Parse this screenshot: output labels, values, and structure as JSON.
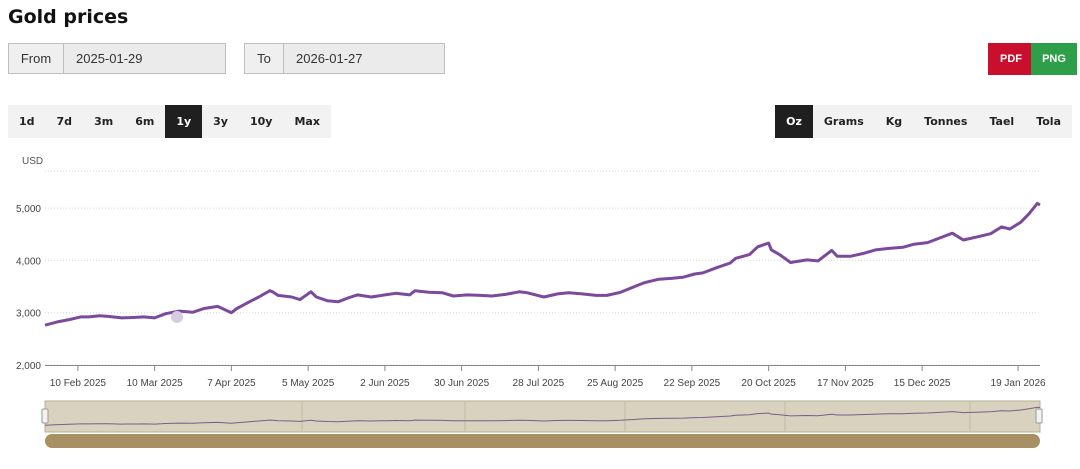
{
  "page": {
    "title": "Gold prices"
  },
  "range": {
    "from_label": "From",
    "from_value": "2025-01-29",
    "to_label": "To",
    "to_value": "2026-01-27"
  },
  "export": {
    "pdf": "PDF",
    "png": "PNG",
    "pdf_color": "#c8102e",
    "png_color": "#2e9e48"
  },
  "periods": [
    "1d",
    "7d",
    "3m",
    "6m",
    "1y",
    "3y",
    "10y",
    "Max"
  ],
  "active_period": "1y",
  "units": [
    "Oz",
    "Grams",
    "Kg",
    "Tonnes",
    "Tael",
    "Tola"
  ],
  "active_unit": "Oz",
  "chart_data": {
    "type": "line",
    "ylabel": "USD",
    "ylim": [
      2000,
      5900
    ],
    "yticks": [
      2000,
      3000,
      4000,
      5000
    ],
    "ytick_labels": [
      "2,000",
      "3,000",
      "4,000",
      "5,000"
    ],
    "x_range": [
      "2025-01-29",
      "2026-01-27"
    ],
    "xticks": [
      "2025-02-10",
      "2025-03-10",
      "2025-04-07",
      "2025-05-05",
      "2025-06-02",
      "2025-06-30",
      "2025-07-28",
      "2025-08-25",
      "2025-09-22",
      "2025-10-20",
      "2025-11-17",
      "2025-12-15",
      "2026-01-19"
    ],
    "xtick_labels": [
      "10 Feb 2025",
      "10 Mar 2025",
      "7 Apr 2025",
      "5 May 2025",
      "2 Jun 2025",
      "30 Jun 2025",
      "28 Jul 2025",
      "25 Aug 2025",
      "22 Sep 2025",
      "20 Oct 2025",
      "17 Nov 2025",
      "15 Dec 2025",
      "19 Jan 2026"
    ],
    "grid": true,
    "line_color": "#7b4a9c",
    "series": [
      {
        "x": [
          "2025-01-29",
          "2025-02-03",
          "2025-02-07",
          "2025-02-11",
          "2025-02-14",
          "2025-02-18",
          "2025-02-21",
          "2025-02-26",
          "2025-03-03",
          "2025-03-06",
          "2025-03-10",
          "2025-03-14",
          "2025-03-19",
          "2025-03-24",
          "2025-03-28",
          "2025-04-02",
          "2025-04-07",
          "2025-04-09",
          "2025-04-14",
          "2025-04-17",
          "2025-04-21",
          "2025-04-22",
          "2025-04-24",
          "2025-04-29",
          "2025-05-02",
          "2025-05-06",
          "2025-05-08",
          "2025-05-12",
          "2025-05-16",
          "2025-05-20",
          "2025-05-23",
          "2025-05-28",
          "2025-06-02",
          "2025-06-06",
          "2025-06-11",
          "2025-06-13",
          "2025-06-18",
          "2025-06-23",
          "2025-06-27",
          "2025-07-02",
          "2025-07-07",
          "2025-07-11",
          "2025-07-16",
          "2025-07-21",
          "2025-07-24",
          "2025-07-30",
          "2025-08-04",
          "2025-08-08",
          "2025-08-13",
          "2025-08-18",
          "2025-08-22",
          "2025-08-27",
          "2025-09-02",
          "2025-09-05",
          "2025-09-10",
          "2025-09-15",
          "2025-09-19",
          "2025-09-23",
          "2025-09-26",
          "2025-10-01",
          "2025-10-06",
          "2025-10-08",
          "2025-10-13",
          "2025-10-16",
          "2025-10-20",
          "2025-10-21",
          "2025-10-24",
          "2025-10-28",
          "2025-11-03",
          "2025-11-07",
          "2025-11-12",
          "2025-11-14",
          "2025-11-19",
          "2025-11-24",
          "2025-11-28",
          "2025-12-03",
          "2025-12-08",
          "2025-12-12",
          "2025-12-17",
          "2025-12-22",
          "2025-12-26",
          "2025-12-30",
          "2026-01-05",
          "2026-01-09",
          "2026-01-13",
          "2026-01-16",
          "2026-01-20",
          "2026-01-23",
          "2026-01-26",
          "2026-01-27"
        ],
        "y": [
          2760,
          2830,
          2870,
          2920,
          2920,
          2940,
          2930,
          2900,
          2910,
          2920,
          2900,
          2980,
          3030,
          3010,
          3080,
          3120,
          3000,
          3080,
          3220,
          3300,
          3420,
          3400,
          3330,
          3300,
          3250,
          3400,
          3300,
          3230,
          3210,
          3290,
          3340,
          3300,
          3340,
          3370,
          3340,
          3420,
          3390,
          3380,
          3320,
          3340,
          3330,
          3320,
          3350,
          3400,
          3380,
          3300,
          3360,
          3380,
          3360,
          3330,
          3330,
          3390,
          3520,
          3580,
          3640,
          3660,
          3680,
          3740,
          3760,
          3860,
          3950,
          4040,
          4110,
          4260,
          4330,
          4200,
          4110,
          3960,
          4010,
          3990,
          4190,
          4080,
          4080,
          4140,
          4200,
          4230,
          4250,
          4310,
          4340,
          4440,
          4520,
          4390,
          4460,
          4510,
          4640,
          4600,
          4730,
          4890,
          5090,
          5060
        ]
      }
    ]
  }
}
